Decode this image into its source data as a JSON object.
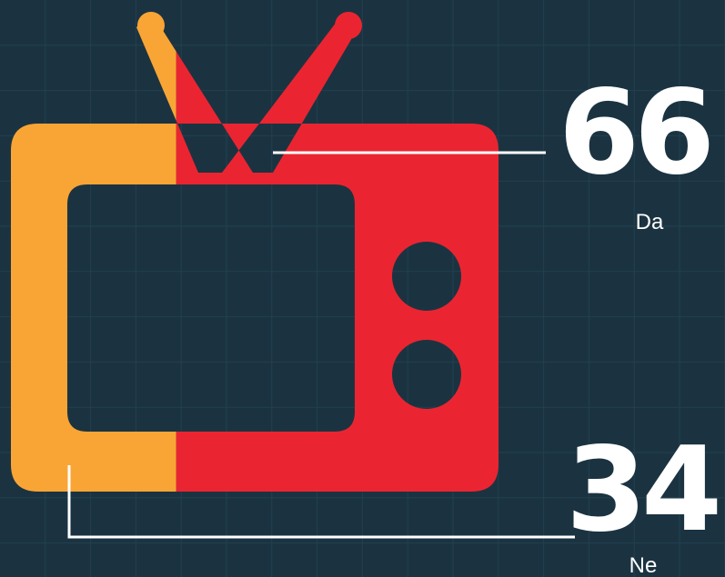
{
  "colors": {
    "background": "#1b3341",
    "grid": "#22404f",
    "ne": "#f9a535",
    "da": "#ea2531",
    "label": "#ffffff",
    "leader_line": "#ffffff"
  },
  "icon": "television-icon",
  "chart_data": {
    "type": "pie",
    "categories": [
      "Da",
      "Ne"
    ],
    "values": [
      66,
      34
    ],
    "unit": "%",
    "labels": [
      {
        "name": "Da",
        "value": "66"
      },
      {
        "name": "Ne",
        "value": "34"
      }
    ],
    "title": "",
    "xlabel": "",
    "ylabel": "",
    "grid": true,
    "legend": "none"
  }
}
